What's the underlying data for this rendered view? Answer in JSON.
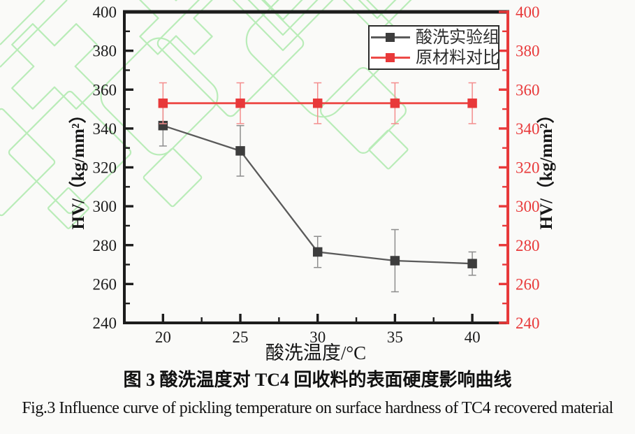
{
  "page": {
    "background": "#fafaf8"
  },
  "watermark": {
    "color": "#8fe38f",
    "opacity": 0.6
  },
  "chart_data": {
    "type": "line",
    "title": "",
    "x": [
      20,
      25,
      30,
      35,
      40
    ],
    "xlabel": "酸洗温度/°C",
    "ylabel_left": "HV/（kg/mm²）",
    "ylabel_right": "HV/（kg/mm²）",
    "xlim": [
      17.5,
      42.3
    ],
    "ylim": [
      240,
      400
    ],
    "x_major_ticks": [
      20,
      25,
      30,
      35,
      40
    ],
    "x_minor_ticks": [
      22.5,
      27.5,
      32.5,
      37.5
    ],
    "y_major_ticks": [
      240,
      260,
      280,
      300,
      320,
      340,
      360,
      380,
      400
    ],
    "y_minor_ticks": [
      250,
      270,
      290,
      310,
      330,
      350,
      370,
      390
    ],
    "grid": false,
    "legend_position": "top-right-inside",
    "axes": {
      "left_color": "#1c1c1c",
      "bottom_color": "#1c1c1c",
      "top_color": "#1c1c1c",
      "right_color": "#e8393a"
    },
    "series": [
      {
        "name": "酸洗实验组",
        "marker": "square",
        "color": "#3d3d3d",
        "line_color": "#5a5a5a",
        "error_color": "#8d8d8d",
        "values": [
          341.5,
          328.5,
          276.5,
          272,
          270.5
        ],
        "errors": [
          10.5,
          13,
          8,
          16,
          6
        ]
      },
      {
        "name": "原材料对比",
        "marker": "square",
        "color": "#e8393a",
        "line_color": "#ed4a47",
        "error_color": "#f48d8d",
        "values": [
          353,
          353,
          353,
          353,
          353
        ],
        "errors": [
          10.5,
          10.5,
          10.5,
          10.5,
          10.5
        ]
      }
    ]
  },
  "legend": {
    "items": [
      "酸洗实验组",
      "原材料对比"
    ]
  },
  "captions": {
    "zh": "图 3 酸洗温度对 TC4 回收料的表面硬度影响曲线",
    "en": "Fig.3 Influence curve of pickling temperature on surface hardness of TC4 recovered material"
  }
}
